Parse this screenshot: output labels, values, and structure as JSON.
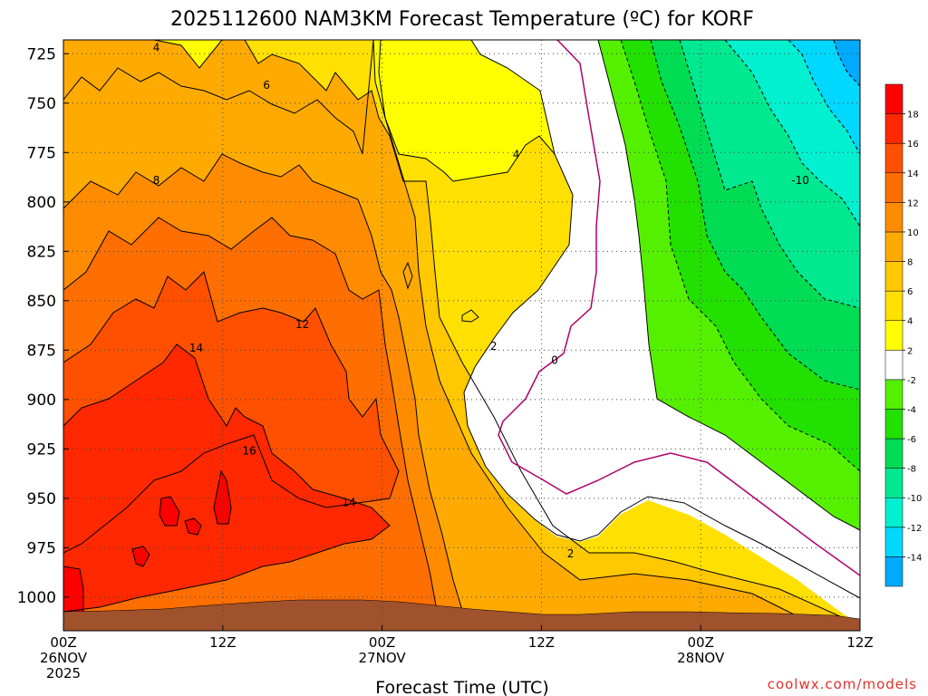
{
  "chart_data": {
    "type": "heatmap",
    "subtype": "filled-contour time-height cross section",
    "title": "2025112600 NAM3KM Forecast Temperature (ºC) for KORF",
    "xlabel": "Forecast Time (UTC)",
    "ylabel": "",
    "x_units": "hours since 26NOV2025 00Z",
    "xlim": [
      0,
      60
    ],
    "ylim": [
      1017,
      718
    ],
    "y_units": "hPa (pressure, inverted axis)",
    "x_ticks": [
      {
        "value": 0,
        "lines": [
          "00Z",
          "26NOV",
          "2025"
        ]
      },
      {
        "value": 12,
        "lines": [
          "12Z"
        ]
      },
      {
        "value": 24,
        "lines": [
          "00Z",
          "27NOV"
        ]
      },
      {
        "value": 36,
        "lines": [
          "12Z"
        ]
      },
      {
        "value": 48,
        "lines": [
          "00Z",
          "28NOV"
        ]
      },
      {
        "value": 60,
        "lines": [
          "12Z"
        ]
      }
    ],
    "y_ticks": [
      "725",
      "750",
      "775",
      "800",
      "825",
      "850",
      "875",
      "900",
      "925",
      "950",
      "975",
      "1000"
    ],
    "grid": true,
    "colorbar": {
      "position": "right",
      "bins": [
        {
          "color": "#00aaff",
          "label": "-14"
        },
        {
          "color": "#00d8ff",
          "label": "-12"
        },
        {
          "color": "#00f0d0",
          "label": "-10"
        },
        {
          "color": "#00e890",
          "label": "-8"
        },
        {
          "color": "#00dd55",
          "label": "-6"
        },
        {
          "color": "#22e000",
          "label": "-4"
        },
        {
          "color": "#55f000",
          "label": "-2"
        },
        {
          "color": "#ffffff",
          "label": "2"
        },
        {
          "color": "#ffff00",
          "label": "4"
        },
        {
          "color": "#ffe000",
          "label": "6"
        },
        {
          "color": "#ffc800",
          "label": "8"
        },
        {
          "color": "#ffaa00",
          "label": "10"
        },
        {
          "color": "#ff8c00",
          "label": "12"
        },
        {
          "color": "#ff6e00",
          "label": "14"
        },
        {
          "color": "#ff5000",
          "label": "16"
        },
        {
          "color": "#ff2800",
          "label": "18"
        },
        {
          "color": "#ff0000",
          "label": ""
        }
      ]
    },
    "bands": [
      {
        "low": -14,
        "high": -12,
        "color": "#00d8ff",
        "region": "top-right"
      },
      {
        "low": -12,
        "high": -10,
        "color": "#00f0d0"
      },
      {
        "low": -10,
        "high": -8,
        "color": "#00e890"
      },
      {
        "low": -8,
        "high": -6,
        "color": "#00dd55"
      },
      {
        "low": -6,
        "high": -4,
        "color": "#22e000"
      },
      {
        "low": -4,
        "high": -2,
        "color": "#55f000"
      },
      {
        "low": -2,
        "high": 2,
        "color": "#ffffff"
      },
      {
        "low": 2,
        "high": 4,
        "color": "#ffff00"
      },
      {
        "low": 4,
        "high": 6,
        "color": "#ffe000"
      },
      {
        "low": 6,
        "high": 8,
        "color": "#ffc800"
      },
      {
        "low": 8,
        "high": 10,
        "color": "#ffaa00"
      },
      {
        "low": 10,
        "high": 12,
        "color": "#ff8c00"
      },
      {
        "low": 12,
        "high": 14,
        "color": "#ff6e00"
      },
      {
        "low": 14,
        "high": 16,
        "color": "#ff5000"
      },
      {
        "low": 16,
        "high": 18,
        "color": "#ff2800"
      },
      {
        "low": 18,
        "high": 20,
        "color": "#ff0000"
      }
    ],
    "contour_labels": [
      {
        "text": "4",
        "x": 7.0,
        "y": 722
      },
      {
        "text": "6",
        "x": 15.3,
        "y": 741
      },
      {
        "text": "8",
        "x": 7.0,
        "y": 789
      },
      {
        "text": "4",
        "x": 34.1,
        "y": 776
      },
      {
        "text": "-10",
        "x": 55.5,
        "y": 789
      },
      {
        "text": "12",
        "x": 18.0,
        "y": 862
      },
      {
        "text": "14",
        "x": 10.0,
        "y": 874
      },
      {
        "text": "2",
        "x": 32.4,
        "y": 873
      },
      {
        "text": "0",
        "x": 37.0,
        "y": 880
      },
      {
        "text": "16",
        "x": 14.0,
        "y": 926
      },
      {
        "text": "14",
        "x": 21.5,
        "y": 952
      },
      {
        "text": "2",
        "x": 38.2,
        "y": 978
      }
    ],
    "surface_color": "#a0522d"
  },
  "watermark": "coolwx.com/models"
}
